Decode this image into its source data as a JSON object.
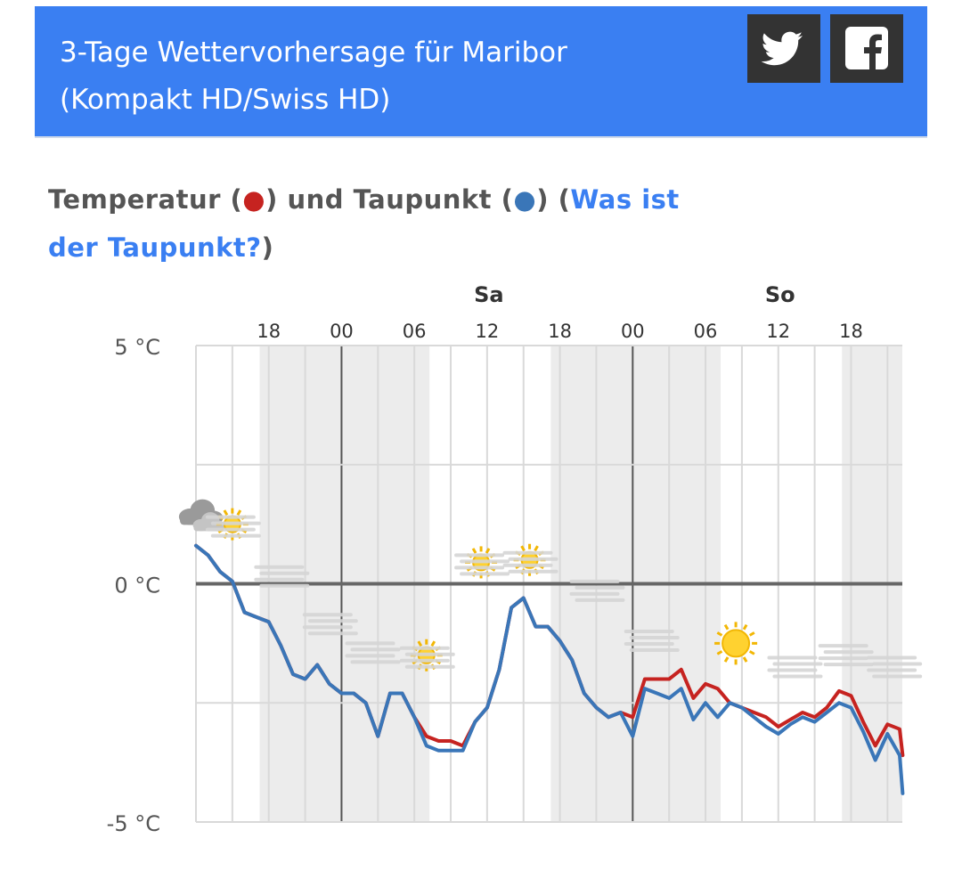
{
  "header": {
    "title_line1": "3-Tage Wettervorhersage für Maribor",
    "title_line2": "(Kompakt HD/Swiss HD)",
    "bg_color": "#3a7ff2",
    "share_buttons": [
      {
        "name": "twitter",
        "icon": "twitter-bird-icon"
      },
      {
        "name": "facebook",
        "icon": "facebook-f-icon"
      }
    ]
  },
  "section": {
    "title_part1": "Temperatur (",
    "red_dot": "●",
    "title_part2": ") und Taupunkt (",
    "blue_dot": "●",
    "title_part3": ") (",
    "link_text": "Was ist der Taupunkt?",
    "title_part4": ")"
  },
  "chart_data": {
    "type": "line",
    "title": "",
    "xlabel": "",
    "ylabel": "",
    "y_ticks": [
      "5 °C",
      "0 °C",
      "-5 °C"
    ],
    "ylim": [
      -5,
      5
    ],
    "day_labels": [
      {
        "label": "Sa",
        "hour": 42
      },
      {
        "label": "So",
        "hour": 66
      }
    ],
    "hour_tick_labels": [
      {
        "label": "18",
        "hour": 24
      },
      {
        "label": "00",
        "hour": 30
      },
      {
        "label": "06",
        "hour": 36
      },
      {
        "label": "12",
        "hour": 42
      },
      {
        "label": "18",
        "hour": 48
      },
      {
        "label": "00",
        "hour": 54
      },
      {
        "label": "06",
        "hour": 60
      },
      {
        "label": "12",
        "hour": 66
      },
      {
        "label": "18",
        "hour": 72
      }
    ],
    "x_range_hours": [
      18,
      76.25
    ],
    "night_shading": [
      [
        23.25,
        37.25
      ],
      [
        47.25,
        61.25
      ],
      [
        71.25,
        76.25
      ]
    ],
    "colors": {
      "temperature": "#c62320",
      "dewpoint": "#3a76b8",
      "zero_line": "#666666",
      "grid": "#d9d9d9",
      "night": "#ececec"
    },
    "series": [
      {
        "name": "Temperatur",
        "points": [
          [
            18,
            0.8
          ],
          [
            19,
            0.6
          ],
          [
            20,
            0.25
          ],
          [
            21,
            0.05
          ],
          [
            22,
            -0.6
          ],
          [
            23,
            -0.7
          ],
          [
            24,
            -0.8
          ],
          [
            25,
            -1.3
          ],
          [
            26,
            -1.9
          ],
          [
            27,
            -2.0
          ],
          [
            28,
            -1.7
          ],
          [
            29,
            -2.1
          ],
          [
            30,
            -2.3
          ],
          [
            31,
            -2.3
          ],
          [
            32,
            -2.5
          ],
          [
            33,
            -3.2
          ],
          [
            34,
            -2.3
          ],
          [
            35,
            -2.3
          ],
          [
            36,
            -2.8
          ],
          [
            37,
            -3.2
          ],
          [
            38,
            -3.3
          ],
          [
            39,
            -3.3
          ],
          [
            40,
            -3.4
          ],
          [
            41,
            -2.9
          ],
          [
            42,
            -2.6
          ],
          [
            43,
            -1.8
          ],
          [
            44,
            -0.5
          ],
          [
            45,
            -0.3
          ],
          [
            46,
            -0.9
          ],
          [
            47,
            -0.9
          ],
          [
            48,
            -1.2
          ],
          [
            49,
            -1.6
          ],
          [
            50,
            -2.3
          ],
          [
            51,
            -2.6
          ],
          [
            52,
            -2.8
          ],
          [
            53,
            -2.7
          ],
          [
            54,
            -2.8
          ],
          [
            55,
            -2.0
          ],
          [
            56,
            -2.0
          ],
          [
            57,
            -2.0
          ],
          [
            58,
            -1.8
          ],
          [
            59,
            -2.4
          ],
          [
            60,
            -2.1
          ],
          [
            61,
            -2.2
          ],
          [
            62,
            -2.5
          ],
          [
            63,
            -2.6
          ],
          [
            64,
            -2.7
          ],
          [
            65,
            -2.8
          ],
          [
            66,
            -3.0
          ],
          [
            67,
            -2.85
          ],
          [
            68,
            -2.7
          ],
          [
            69,
            -2.8
          ],
          [
            70,
            -2.6
          ],
          [
            71,
            -2.25
          ],
          [
            72,
            -2.35
          ],
          [
            73,
            -2.9
          ],
          [
            74,
            -3.4
          ],
          [
            75,
            -2.95
          ],
          [
            76,
            -3.05
          ],
          [
            76.25,
            -3.6
          ]
        ]
      },
      {
        "name": "Taupunkt",
        "points": [
          [
            18,
            0.8
          ],
          [
            19,
            0.6
          ],
          [
            20,
            0.25
          ],
          [
            21,
            0.05
          ],
          [
            22,
            -0.6
          ],
          [
            23,
            -0.7
          ],
          [
            24,
            -0.8
          ],
          [
            25,
            -1.3
          ],
          [
            26,
            -1.9
          ],
          [
            27,
            -2.0
          ],
          [
            28,
            -1.7
          ],
          [
            29,
            -2.1
          ],
          [
            30,
            -2.3
          ],
          [
            31,
            -2.3
          ],
          [
            32,
            -2.5
          ],
          [
            33,
            -3.2
          ],
          [
            34,
            -2.3
          ],
          [
            35,
            -2.3
          ],
          [
            36,
            -2.8
          ],
          [
            37,
            -3.4
          ],
          [
            38,
            -3.5
          ],
          [
            39,
            -3.5
          ],
          [
            40,
            -3.5
          ],
          [
            41,
            -2.9
          ],
          [
            42,
            -2.6
          ],
          [
            43,
            -1.8
          ],
          [
            44,
            -0.5
          ],
          [
            45,
            -0.3
          ],
          [
            46,
            -0.9
          ],
          [
            47,
            -0.9
          ],
          [
            48,
            -1.2
          ],
          [
            49,
            -1.6
          ],
          [
            50,
            -2.3
          ],
          [
            51,
            -2.6
          ],
          [
            52,
            -2.8
          ],
          [
            53,
            -2.7
          ],
          [
            54,
            -3.2
          ],
          [
            55,
            -2.2
          ],
          [
            56,
            -2.3
          ],
          [
            57,
            -2.4
          ],
          [
            58,
            -2.2
          ],
          [
            59,
            -2.85
          ],
          [
            60,
            -2.5
          ],
          [
            61,
            -2.8
          ],
          [
            62,
            -2.5
          ],
          [
            63,
            -2.6
          ],
          [
            64,
            -2.8
          ],
          [
            65,
            -3.0
          ],
          [
            66,
            -3.15
          ],
          [
            67,
            -2.95
          ],
          [
            68,
            -2.8
          ],
          [
            69,
            -2.9
          ],
          [
            70,
            -2.7
          ],
          [
            71,
            -2.5
          ],
          [
            72,
            -2.6
          ],
          [
            73,
            -3.1
          ],
          [
            74,
            -3.7
          ],
          [
            75,
            -3.15
          ],
          [
            76,
            -3.6
          ],
          [
            76.25,
            -4.4
          ]
        ]
      }
    ],
    "weather_icons": [
      {
        "hour": 18.2,
        "temp": 1.45,
        "icon": "cloud-overcast-icon",
        "size": "large"
      },
      {
        "hour": 21,
        "temp": 1.25,
        "icon": "partly-cloudy-sun-icon",
        "size": "small"
      },
      {
        "hour": 25,
        "temp": 0.2,
        "icon": "partly-cloudy-moon-icon",
        "size": "small"
      },
      {
        "hour": 29,
        "temp": -0.8,
        "icon": "partly-cloudy-moon-icon",
        "size": "small"
      },
      {
        "hour": 32.5,
        "temp": -1.4,
        "icon": "partly-cloudy-moon-icon",
        "size": "small"
      },
      {
        "hour": 37,
        "temp": -1.5,
        "icon": "partly-cloudy-sun-icon",
        "size": "small"
      },
      {
        "hour": 41.5,
        "temp": 0.45,
        "icon": "partly-cloudy-sun-icon",
        "size": "small"
      },
      {
        "hour": 45.5,
        "temp": 0.5,
        "icon": "partly-cloudy-sun-icon",
        "size": "small"
      },
      {
        "hour": 51,
        "temp": -0.1,
        "icon": "partly-cloudy-moon-icon",
        "size": "small"
      },
      {
        "hour": 55.5,
        "temp": -1.15,
        "icon": "partly-cloudy-moon-icon",
        "size": "small"
      },
      {
        "hour": 58.5,
        "temp": -0.95,
        "icon": "moon-icon",
        "size": "large"
      },
      {
        "hour": 62.5,
        "temp": -1.25,
        "icon": "sun-icon",
        "size": "large"
      },
      {
        "hour": 67.3,
        "temp": -1.7,
        "icon": "partly-cloudy-moon-icon",
        "size": "small"
      },
      {
        "hour": 71.5,
        "temp": -1.45,
        "icon": "partly-cloudy-moon-icon",
        "size": "small"
      },
      {
        "hour": 75.5,
        "temp": -1.7,
        "icon": "partly-cloudy-moon-icon",
        "size": "small"
      }
    ]
  }
}
